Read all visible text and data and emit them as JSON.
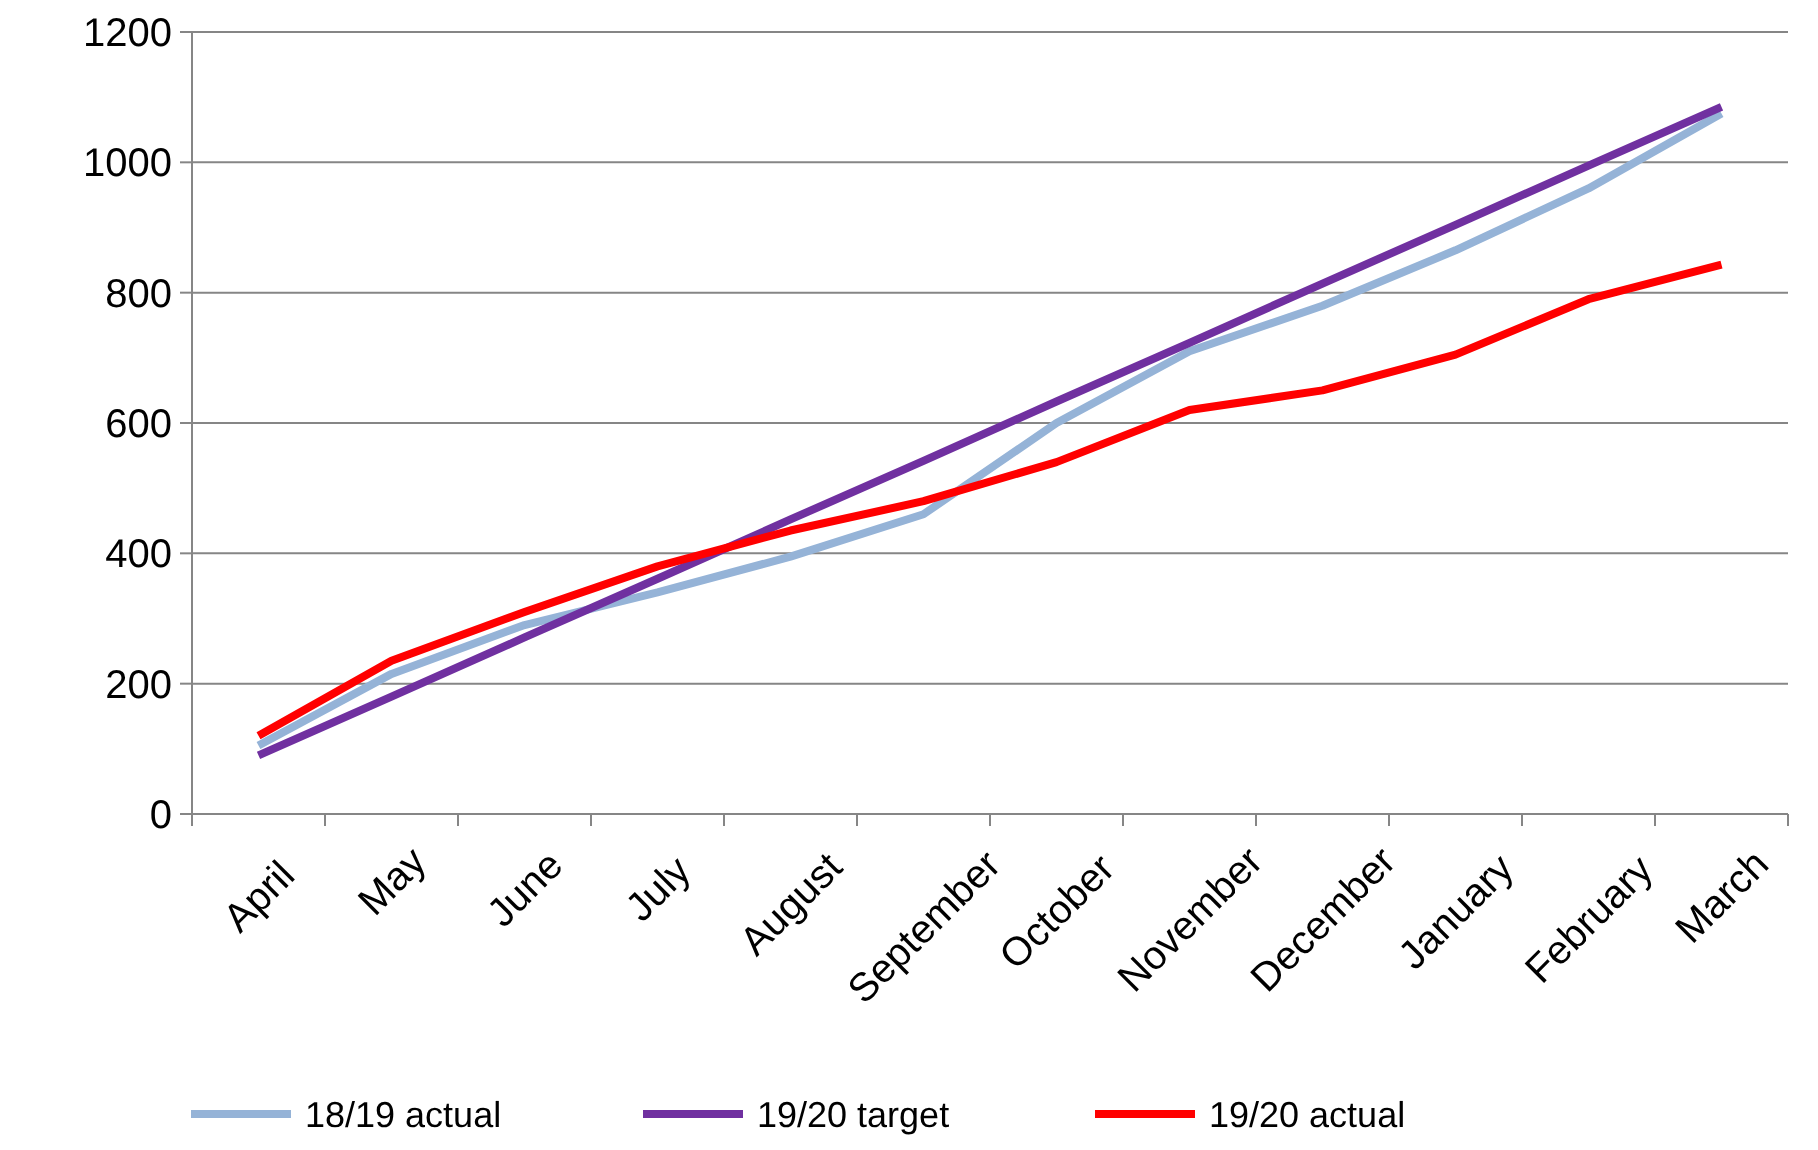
{
  "chart_data": {
    "type": "line",
    "categories": [
      "April",
      "May",
      "June",
      "July",
      "August",
      "September",
      "October",
      "November",
      "December",
      "January",
      "February",
      "March"
    ],
    "series": [
      {
        "name": "18/19 actual",
        "color": "#95b3d7",
        "values": [
          105,
          215,
          290,
          340,
          395,
          460,
          600,
          710,
          780,
          865,
          960,
          1075
        ]
      },
      {
        "name": "19/20 target",
        "color": "#7030a0",
        "values": [
          90,
          180,
          271,
          361,
          452,
          542,
          633,
          723,
          814,
          904,
          995,
          1085
        ]
      },
      {
        "name": "19/20 actual",
        "color": "#ff0000",
        "values": [
          120,
          235,
          310,
          380,
          435,
          480,
          540,
          620,
          650,
          705,
          790,
          843
        ]
      }
    ],
    "ylim": [
      0,
      1200
    ],
    "yticks": [
      0,
      200,
      400,
      600,
      800,
      1000,
      1200
    ],
    "grid": "y",
    "legend": "bottom",
    "marker": "none",
    "line_style": "solid"
  }
}
